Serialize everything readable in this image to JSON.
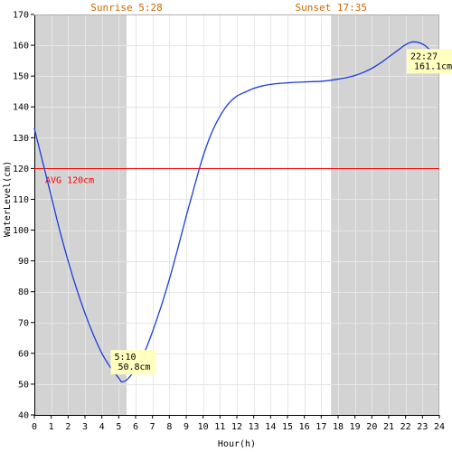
{
  "chart_data": {
    "type": "line",
    "xlabel": "Hour(h)",
    "ylabel": "WaterLevel(cm)",
    "xlim": [
      0,
      24
    ],
    "ylim": [
      40,
      170
    ],
    "x_ticks": [
      "0",
      "1",
      "2",
      "3",
      "4",
      "5",
      "6",
      "7",
      "8",
      "9",
      "10",
      "11",
      "12",
      "13",
      "14",
      "15",
      "16",
      "17",
      "18",
      "19",
      "20",
      "21",
      "22",
      "23",
      "24"
    ],
    "y_ticks": [
      "40",
      "50",
      "60",
      "70",
      "80",
      "90",
      "100",
      "110",
      "120",
      "130",
      "140",
      "150",
      "160",
      "170"
    ],
    "grid": true,
    "sunrise": {
      "label": "Sunrise 5:28",
      "hour": 5.4667
    },
    "sunset": {
      "label": "Sunset 17:35",
      "hour": 17.5833
    },
    "night_color": "#d3d3d3",
    "day_color": "#ffffff",
    "sun_label_color": "#cc6600",
    "series": [
      {
        "color": "#1a3fd9",
        "x": [
          0,
          0.5,
          1,
          1.5,
          2,
          2.5,
          3,
          3.5,
          4,
          4.5,
          5,
          5.17,
          5.5,
          6,
          6.5,
          7,
          7.5,
          8,
          8.5,
          9,
          9.5,
          10,
          10.5,
          11,
          11.5,
          12,
          12.5,
          13,
          13.5,
          14,
          14.5,
          15,
          15.5,
          16,
          16.5,
          17,
          17.5,
          18,
          18.5,
          19,
          19.5,
          20,
          20.5,
          21,
          21.5,
          22,
          22.45,
          23,
          23.5,
          24
        ],
        "values": [
          133,
          122,
          111,
          100,
          90,
          81,
          73,
          66,
          60,
          55.5,
          52,
          50.8,
          51.5,
          55,
          60,
          67,
          75,
          84,
          94,
          104.5,
          114.5,
          124,
          131.5,
          137,
          141,
          143.5,
          144.8,
          146,
          146.8,
          147.3,
          147.6,
          147.8,
          148,
          148.1,
          148.2,
          148.3,
          148.6,
          149,
          149.5,
          150.2,
          151.2,
          152.5,
          154.2,
          156.2,
          158.2,
          160.2,
          161.1,
          160.4,
          158,
          153
        ]
      }
    ],
    "average": {
      "value": 120,
      "label": "AVG 120cm",
      "color": "#ff0000"
    },
    "annotations": [
      {
        "line1": "5:10",
        "line2": "50.8cm",
        "hour": 5.1667,
        "value": 50.8
      },
      {
        "line1": "22:27",
        "line2": "161.1cm",
        "hour": 22.45,
        "value": 161.1
      }
    ],
    "callout_bg": "#ffffc0"
  }
}
